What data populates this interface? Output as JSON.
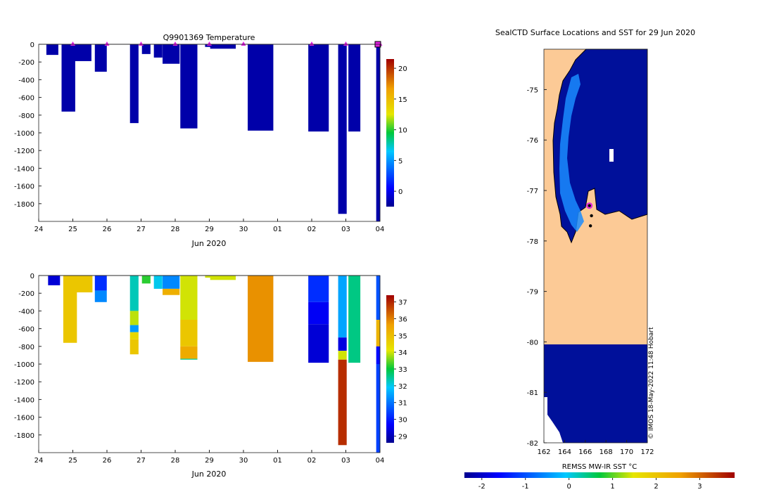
{
  "chart_data": [
    {
      "type": "heatmap",
      "title": "Q9901369  Temperature",
      "xlabel": "Jun 2020",
      "ylabel": "",
      "x_ticks": [
        "24",
        "25",
        "26",
        "27",
        "28",
        "29",
        "30",
        "01",
        "02",
        "03",
        "04"
      ],
      "y_ticks": [
        "0",
        "-200",
        "-400",
        "-600",
        "-800",
        "-1000",
        "-1200",
        "-1400",
        "-1600",
        "-1800"
      ],
      "ylim": [
        -2000,
        0
      ],
      "colorbar": {
        "ticks": [
          "20",
          "15",
          "10",
          "5",
          "0"
        ],
        "range": [
          -2.5,
          21.5
        ]
      },
      "profiles": [
        {
          "day": 0.4,
          "width": 0.35,
          "depth": 120,
          "value": -1.8
        },
        {
          "day": 0.87,
          "width": 0.4,
          "depth": 760,
          "value": -1.8
        },
        {
          "day": 1.27,
          "width": 0.55,
          "depth": 190,
          "value": -1.8
        },
        {
          "day": 1.82,
          "width": 0.35,
          "depth": 310,
          "value": -1.8
        },
        {
          "day": 2.8,
          "width": 0.25,
          "depth": 890,
          "value": -1.8
        },
        {
          "day": 3.15,
          "width": 0.25,
          "depth": 110,
          "value": -1.8
        },
        {
          "day": 3.5,
          "width": 0.25,
          "depth": 150,
          "value": -1.8
        },
        {
          "day": 3.88,
          "width": 0.5,
          "depth": 220,
          "value": -1.8
        },
        {
          "day": 4.4,
          "width": 0.5,
          "depth": 950,
          "value": -1.8
        },
        {
          "day": 5.0,
          "width": 0.25,
          "depth": 30,
          "value": -1.8
        },
        {
          "day": 5.4,
          "width": 0.75,
          "depth": 50,
          "value": -1.8
        },
        {
          "day": 6.5,
          "width": 0.75,
          "depth": 975,
          "value": -1.8
        },
        {
          "day": 8.2,
          "width": 0.6,
          "depth": 985,
          "value": -1.8
        },
        {
          "day": 8.9,
          "width": 0.25,
          "depth": 1915,
          "value": -1.8
        },
        {
          "day": 9.25,
          "width": 0.35,
          "depth": 985,
          "value": -1.8
        },
        {
          "day": 9.95,
          "width": 0.12,
          "depth": 2000,
          "value": -1.8
        }
      ],
      "profile_markers_days": [
        1,
        2,
        3,
        4,
        5,
        6,
        8,
        9,
        10
      ]
    },
    {
      "type": "heatmap",
      "title": "",
      "xlabel": "Jun 2020",
      "ylabel": "",
      "x_ticks": [
        "24",
        "25",
        "26",
        "27",
        "28",
        "29",
        "30",
        "01",
        "02",
        "03",
        "04"
      ],
      "y_ticks": [
        "0",
        "-200",
        "-400",
        "-600",
        "-800",
        "-1000",
        "-1200",
        "-1400",
        "-1600",
        "-1800"
      ],
      "ylim": [
        -2000,
        0
      ],
      "colorbar": {
        "ticks": [
          "37",
          "36",
          "35",
          "34",
          "33",
          "32",
          "31",
          "30",
          "29"
        ],
        "range": [
          28.6,
          37.4
        ]
      },
      "profiles": [
        {
          "day": 0.45,
          "width": 0.35,
          "depth": 110,
          "segments": [
            [
              0,
              110,
              29.3
            ]
          ]
        },
        {
          "day": 0.92,
          "width": 0.4,
          "depth": 760,
          "segments": [
            [
              0,
              760,
              34.8
            ]
          ]
        },
        {
          "day": 1.3,
          "width": 0.55,
          "depth": 190,
          "segments": [
            [
              0,
              190,
              34.8
            ]
          ]
        },
        {
          "day": 1.82,
          "width": 0.35,
          "depth": 300,
          "segments": [
            [
              0,
              170,
              30.2
            ],
            [
              170,
              300,
              31.2
            ]
          ]
        },
        {
          "day": 2.8,
          "width": 0.25,
          "depth": 890,
          "segments": [
            [
              0,
              400,
              32.3
            ],
            [
              400,
              560,
              33.9
            ],
            [
              560,
              640,
              31.4
            ],
            [
              640,
              720,
              34.4
            ],
            [
              720,
              890,
              34.8
            ]
          ]
        },
        {
          "day": 3.15,
          "width": 0.25,
          "depth": 90,
          "segments": [
            [
              0,
              90,
              33.2
            ]
          ]
        },
        {
          "day": 3.5,
          "width": 0.25,
          "depth": 150,
          "segments": [
            [
              0,
              150,
              32.0
            ]
          ]
        },
        {
          "day": 3.88,
          "width": 0.5,
          "depth": 220,
          "segments": [
            [
              0,
              150,
              31.2
            ],
            [
              150,
              220,
              35.3
            ]
          ]
        },
        {
          "day": 4.4,
          "width": 0.5,
          "depth": 950,
          "segments": [
            [
              0,
              500,
              34.0
            ],
            [
              500,
              800,
              34.8
            ],
            [
              800,
              940,
              35.4
            ],
            [
              940,
              950,
              32.5
            ]
          ]
        },
        {
          "day": 5.0,
          "width": 0.25,
          "depth": 25,
          "segments": [
            [
              0,
              25,
              34.0
            ]
          ]
        },
        {
          "day": 5.4,
          "width": 0.75,
          "depth": 50,
          "segments": [
            [
              0,
              50,
              34.0
            ]
          ]
        },
        {
          "day": 6.5,
          "width": 0.75,
          "depth": 975,
          "segments": [
            [
              0,
              975,
              35.8
            ]
          ]
        },
        {
          "day": 8.2,
          "width": 0.6,
          "depth": 985,
          "segments": [
            [
              0,
              300,
              30.2
            ],
            [
              300,
              550,
              29.6
            ],
            [
              550,
              985,
              29.3
            ]
          ]
        },
        {
          "day": 8.9,
          "width": 0.25,
          "depth": 1915,
          "segments": [
            [
              0,
              700,
              31.5
            ],
            [
              700,
              850,
              29.4
            ],
            [
              850,
              950,
              34.0
            ],
            [
              950,
              1915,
              36.9
            ]
          ]
        },
        {
          "day": 9.25,
          "width": 0.35,
          "depth": 985,
          "segments": [
            [
              0,
              985,
              32.6
            ]
          ]
        },
        {
          "day": 9.95,
          "width": 0.12,
          "depth": 2000,
          "segments": [
            [
              0,
              500,
              30.6
            ],
            [
              500,
              800,
              35.2
            ],
            [
              800,
              1000,
              29.8
            ],
            [
              1000,
              2000,
              30.4
            ]
          ]
        }
      ]
    },
    {
      "type": "heatmap",
      "title": "SealCTD Surface Locations and SST for 29 Jun 2020",
      "xlabel": "REMSS MW-IR SST °C",
      "x_ticks": [
        "162",
        "164",
        "166",
        "168",
        "170",
        "172"
      ],
      "y_ticks": [
        "-75",
        "-76",
        "-77",
        "-78",
        "-79",
        "-80",
        "-81",
        "-82"
      ],
      "xlim": [
        162,
        172
      ],
      "ylim": [
        -82,
        -74.2
      ],
      "colorbar": {
        "ticks": [
          "-2",
          "-1",
          "0",
          "1",
          "2",
          "3"
        ],
        "range": [
          -2.4,
          3.8
        ]
      },
      "regions": {
        "land": "Antarctic land / ice shelf",
        "ocean_sst": -1.8
      },
      "track_points": [
        [
          166.4,
          -77.3
        ],
        [
          166.6,
          -77.5
        ],
        [
          166.5,
          -77.7
        ]
      ],
      "highlight_point": [
        166.4,
        -77.3
      ],
      "watermark": "© IMOS 18-May-2022 11:48 Hobart"
    }
  ]
}
